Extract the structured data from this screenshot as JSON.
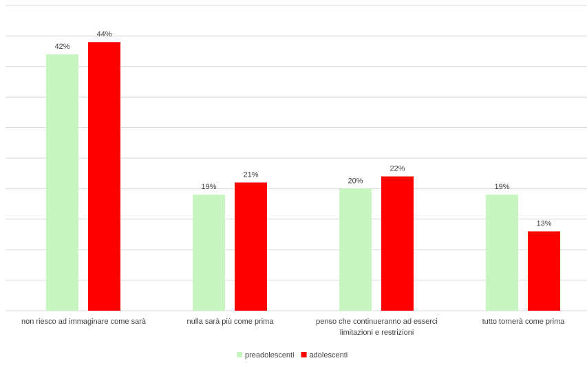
{
  "chart_data": {
    "type": "bar",
    "categories": [
      "non riesco ad immaginare come sarà",
      "nulla sarà più come prima",
      "penso che continueranno ad esserci limitazioni e restrizioni",
      "tutto tornerà come prima"
    ],
    "series": [
      {
        "name": "preadolescenti",
        "color": "#c6f5bf",
        "values": [
          42,
          19,
          20,
          19
        ],
        "value_labels": [
          "42%",
          "19%",
          "20%",
          "19%"
        ]
      },
      {
        "name": "adolescenti",
        "color": "#ff0000",
        "values": [
          44,
          21,
          22,
          13
        ],
        "value_labels": [
          "44%",
          "21%",
          "22%",
          "13%"
        ]
      }
    ],
    "ylim": [
      0,
      50
    ],
    "yticks": [
      0,
      5,
      10,
      15,
      20,
      25,
      30,
      35,
      40,
      45,
      50
    ],
    "grid": true,
    "legend": "bottom"
  }
}
